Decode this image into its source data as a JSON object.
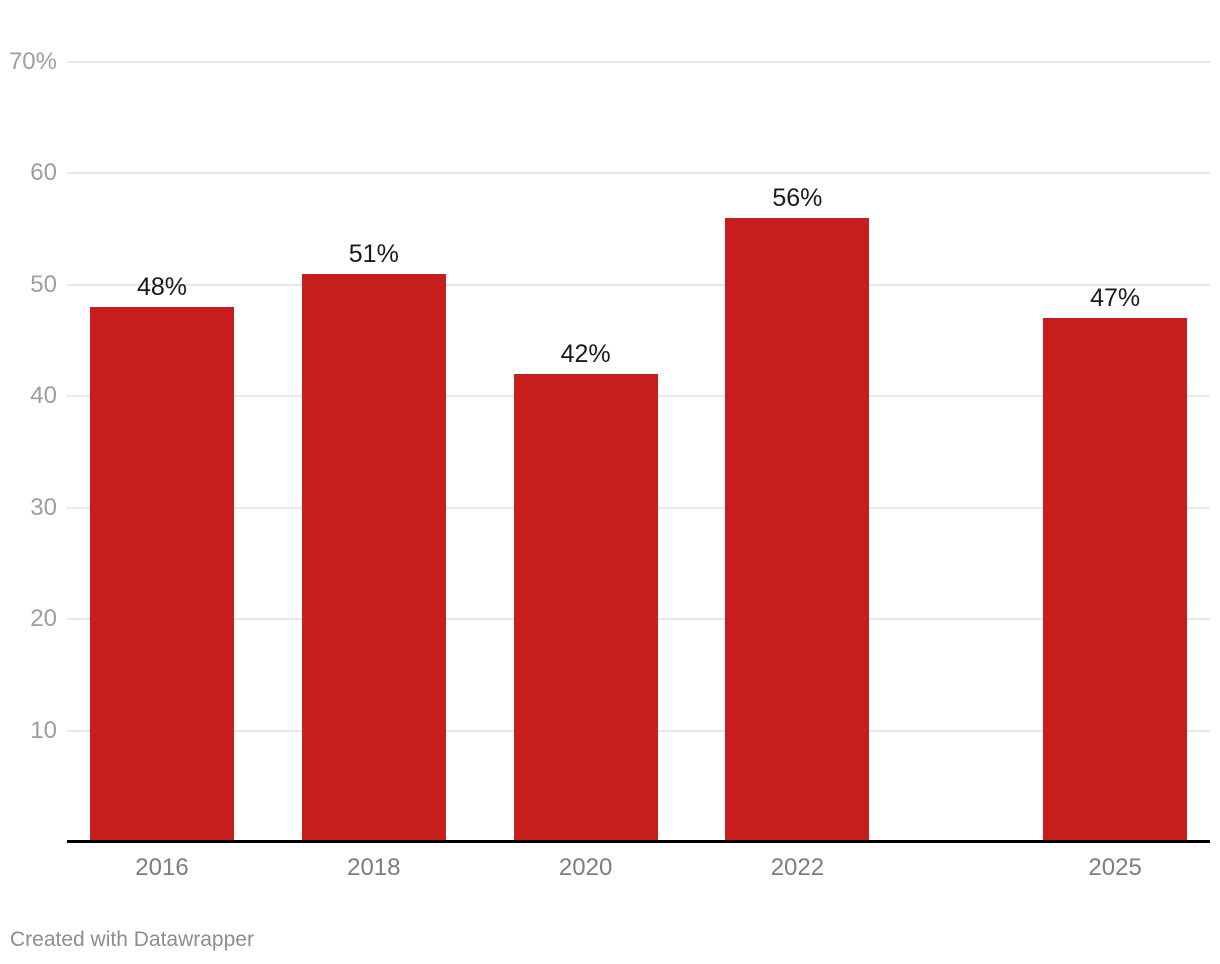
{
  "chart_data": {
    "type": "bar",
    "categories": [
      "2016",
      "2018",
      "2020",
      "2022",
      "2025"
    ],
    "x_years": [
      2016,
      2018,
      2020,
      2022,
      2025
    ],
    "values": [
      48,
      51,
      42,
      56,
      47
    ],
    "value_labels": [
      "48%",
      "51%",
      "42%",
      "56%",
      "47%"
    ],
    "y_ticks": [
      10,
      20,
      30,
      40,
      50,
      60,
      70
    ],
    "y_tick_labels": [
      "10",
      "20",
      "30",
      "40",
      "50",
      "60",
      "70%"
    ],
    "ylim": [
      0,
      70
    ],
    "x_scale": "linear-year",
    "grid": "horizontal-only",
    "legend": "none",
    "title": "",
    "xlabel": "",
    "ylabel": ""
  },
  "colors": {
    "bar": "#c71e1d",
    "gridline": "#e8e8e8",
    "axis_line": "#000000",
    "y_tick_text": "#9e9e9e",
    "x_label_text": "#7d7d7d",
    "value_label_text": "#1a1a1a",
    "credit_text": "#8d8d8d"
  },
  "footer": {
    "credit": "Created with Datawrapper"
  }
}
